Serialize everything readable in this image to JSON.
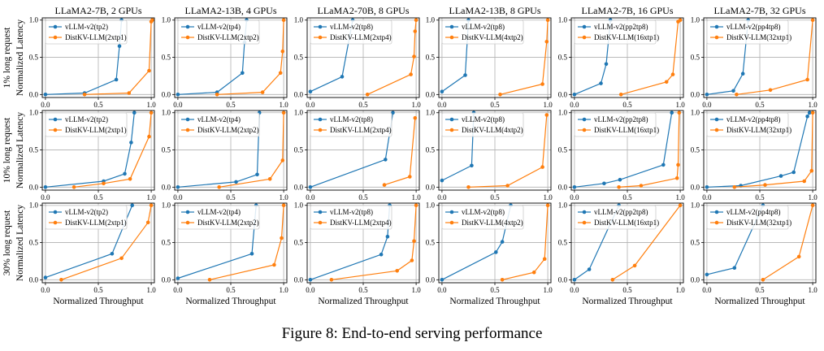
{
  "figure": {
    "caption": "Figure 8: End-to-end serving performance",
    "row_labels": [
      "1% long request",
      "10% long request",
      "30% long request"
    ],
    "ylabel": "Normalized Latency",
    "xlabel": "Normalized Throughput",
    "tick_labels": [
      "0.0",
      "0.5",
      "1.0"
    ],
    "colors": {
      "vllm": "#1f77b4",
      "distkv": "#ff7f0e"
    }
  },
  "chart_data": [
    {
      "type": "line",
      "title": "LLaMA2-7B, 2 GPUs",
      "xlim": [
        -0.03,
        1.03
      ],
      "ylim": [
        -0.04,
        1.03
      ],
      "legend": "top-left",
      "series": [
        {
          "name": "vLLM-v2(tp2)",
          "x": [
            0.0,
            0.37,
            0.67,
            0.7,
            0.72
          ],
          "y": [
            0.0,
            0.02,
            0.2,
            0.65,
            1.0
          ]
        },
        {
          "name": "DistKV-LLM(2xtp1)",
          "x": [
            0.37,
            0.79,
            0.98,
            1.0,
            1.01
          ],
          "y": [
            0.0,
            0.02,
            0.32,
            0.98,
            1.0
          ]
        }
      ]
    },
    {
      "type": "line",
      "title": "LLaMA2-13B, 4 GPUs",
      "xlim": [
        -0.03,
        1.03
      ],
      "ylim": [
        -0.04,
        1.03
      ],
      "legend": "top-left",
      "series": [
        {
          "name": "vLLM-v2(tp4)",
          "x": [
            0.0,
            0.37,
            0.61,
            0.63,
            0.65
          ],
          "y": [
            0.0,
            0.03,
            0.29,
            0.7,
            1.0
          ]
        },
        {
          "name": "DistKV-LLM(2xtp2)",
          "x": [
            0.37,
            0.8,
            0.97,
            0.99,
            1.0
          ],
          "y": [
            0.0,
            0.03,
            0.29,
            0.58,
            1.0
          ]
        }
      ]
    },
    {
      "type": "line",
      "title": "LLaMA2-70B, 8 GPUs",
      "xlim": [
        -0.03,
        1.03
      ],
      "ylim": [
        -0.04,
        1.03
      ],
      "legend": "top-left",
      "series": [
        {
          "name": "vLLM-v2(tp8)",
          "x": [
            0.0,
            0.3,
            0.4
          ],
          "y": [
            0.04,
            0.24,
            1.0
          ]
        },
        {
          "name": "DistKV-LLM(2xtp4)",
          "x": [
            0.54,
            0.95,
            0.98,
            0.99,
            1.0
          ],
          "y": [
            0.0,
            0.27,
            0.51,
            0.85,
            1.0
          ]
        }
      ]
    },
    {
      "type": "line",
      "title": "LLaMA2-13B, 8 GPUs",
      "xlim": [
        -0.03,
        1.03
      ],
      "ylim": [
        -0.04,
        1.03
      ],
      "legend": "top-left",
      "series": [
        {
          "name": "vLLM-v2(tp8)",
          "x": [
            0.0,
            0.22,
            0.25
          ],
          "y": [
            0.04,
            0.26,
            1.0
          ]
        },
        {
          "name": "DistKV-LLM(4xtp2)",
          "x": [
            0.55,
            0.95,
            0.99,
            1.0
          ],
          "y": [
            0.0,
            0.14,
            0.71,
            1.0
          ]
        }
      ]
    },
    {
      "type": "line",
      "title": "LLaMA2-7B, 16 GPUs",
      "xlim": [
        -0.03,
        1.03
      ],
      "ylim": [
        -0.04,
        1.03
      ],
      "legend": "top-left",
      "series": [
        {
          "name": "vLLM-v2(pp2tp8)",
          "x": [
            0.0,
            0.25,
            0.3,
            0.34
          ],
          "y": [
            0.0,
            0.15,
            0.41,
            1.0
          ]
        },
        {
          "name": "DistKV-LLM(16xtp1)",
          "x": [
            0.44,
            0.87,
            0.93,
            0.98,
            1.0
          ],
          "y": [
            0.0,
            0.17,
            0.27,
            0.98,
            1.0
          ]
        }
      ]
    },
    {
      "type": "line",
      "title": "LLaMA2-7B, 32 GPUs",
      "xlim": [
        -0.03,
        1.03
      ],
      "ylim": [
        -0.04,
        1.03
      ],
      "legend": "top-left",
      "series": [
        {
          "name": "vLLM-v2(pp4tp8)",
          "x": [
            0.0,
            0.25,
            0.34,
            0.39
          ],
          "y": [
            0.0,
            0.05,
            0.28,
            1.0
          ]
        },
        {
          "name": "DistKV-LLM(32xtp1)",
          "x": [
            0.28,
            0.6,
            0.95,
            1.0
          ],
          "y": [
            0.0,
            0.06,
            0.2,
            1.0
          ]
        }
      ]
    },
    {
      "type": "line",
      "title": "",
      "xlim": [
        -0.03,
        1.03
      ],
      "ylim": [
        -0.04,
        1.03
      ],
      "legend": "top-left",
      "series": [
        {
          "name": "vLLM-v2(tp2)",
          "x": [
            0.0,
            0.55,
            0.75,
            0.81,
            0.84
          ],
          "y": [
            0.0,
            0.08,
            0.18,
            0.6,
            1.0
          ]
        },
        {
          "name": "DistKV-LLM(2xtp1)",
          "x": [
            0.27,
            0.55,
            0.8,
            0.98,
            1.0
          ],
          "y": [
            0.0,
            0.05,
            0.11,
            0.68,
            1.0
          ]
        }
      ]
    },
    {
      "type": "line",
      "title": "",
      "xlim": [
        -0.03,
        1.03
      ],
      "ylim": [
        -0.04,
        1.03
      ],
      "legend": "top-left",
      "series": [
        {
          "name": "vLLM-v2(tp4)",
          "x": [
            0.0,
            0.55,
            0.75,
            0.77
          ],
          "y": [
            0.0,
            0.07,
            0.17,
            1.0
          ]
        },
        {
          "name": "DistKV-LLM(2xtp2)",
          "x": [
            0.39,
            0.87,
            0.99,
            1.0
          ],
          "y": [
            0.0,
            0.11,
            0.36,
            1.0
          ]
        }
      ]
    },
    {
      "type": "line",
      "title": "",
      "xlim": [
        -0.03,
        1.03
      ],
      "ylim": [
        -0.04,
        1.03
      ],
      "legend": "top-left",
      "series": [
        {
          "name": "vLLM-v2(tp8)",
          "x": [
            0.0,
            0.71,
            0.78
          ],
          "y": [
            0.0,
            0.37,
            1.0
          ]
        },
        {
          "name": "DistKV-LLM(2xtp4)",
          "x": [
            0.7,
            0.94,
            0.99
          ],
          "y": [
            0.03,
            0.14,
            0.93
          ]
        }
      ]
    },
    {
      "type": "line",
      "title": "",
      "xlim": [
        -0.03,
        1.03
      ],
      "ylim": [
        -0.04,
        1.03
      ],
      "legend": "top-left",
      "series": [
        {
          "name": "vLLM-v2(tp8)",
          "x": [
            0.0,
            0.28,
            0.3
          ],
          "y": [
            0.09,
            0.29,
            1.0
          ]
        },
        {
          "name": "DistKV-LLM(4xtp2)",
          "x": [
            0.25,
            0.62,
            0.95,
            0.99
          ],
          "y": [
            0.0,
            0.02,
            0.27,
            0.97
          ]
        }
      ]
    },
    {
      "type": "line",
      "title": "",
      "xlim": [
        -0.03,
        1.03
      ],
      "ylim": [
        -0.04,
        1.03
      ],
      "legend": "top-left",
      "series": [
        {
          "name": "vLLM-v2(pp2tp8)",
          "x": [
            0.0,
            0.28,
            0.43,
            0.84,
            0.92
          ],
          "y": [
            0.0,
            0.05,
            0.1,
            0.3,
            1.0
          ]
        },
        {
          "name": "DistKV-LLM(16xtp1)",
          "x": [
            0.42,
            0.63,
            0.97,
            0.98,
            0.99
          ],
          "y": [
            0.0,
            0.02,
            0.12,
            0.3,
            1.0
          ]
        }
      ]
    },
    {
      "type": "line",
      "title": "",
      "xlim": [
        -0.03,
        1.03
      ],
      "ylim": [
        -0.04,
        1.03
      ],
      "legend": "top-left",
      "series": [
        {
          "name": "vLLM-v2(pp4tp8)",
          "x": [
            0.0,
            0.32,
            0.7,
            0.82,
            0.95,
            0.97
          ],
          "y": [
            0.0,
            0.02,
            0.15,
            0.2,
            0.95,
            1.0
          ]
        },
        {
          "name": "DistKV-LLM(32xtp1)",
          "x": [
            0.26,
            0.55,
            0.92,
            0.99,
            1.0
          ],
          "y": [
            0.0,
            0.03,
            0.08,
            0.22,
            1.0
          ]
        }
      ]
    },
    {
      "type": "line",
      "title": "",
      "xlim": [
        -0.03,
        1.03
      ],
      "ylim": [
        -0.04,
        1.03
      ],
      "legend": "top-left",
      "series": [
        {
          "name": "vLLM-v2(tp2)",
          "x": [
            0.0,
            0.63,
            0.82
          ],
          "y": [
            0.03,
            0.35,
            1.0
          ]
        },
        {
          "name": "DistKV-LLM(2xtp1)",
          "x": [
            0.15,
            0.72,
            0.97,
            1.0
          ],
          "y": [
            0.0,
            0.29,
            0.77,
            1.0
          ]
        }
      ]
    },
    {
      "type": "line",
      "title": "",
      "xlim": [
        -0.03,
        1.03
      ],
      "ylim": [
        -0.04,
        1.03
      ],
      "legend": "top-left",
      "series": [
        {
          "name": "vLLM-v2(tp4)",
          "x": [
            0.0,
            0.7,
            0.74
          ],
          "y": [
            0.02,
            0.35,
            1.0
          ]
        },
        {
          "name": "DistKV-LLM(2xtp2)",
          "x": [
            0.3,
            0.91,
            0.98,
            1.0
          ],
          "y": [
            0.0,
            0.2,
            0.56,
            1.0
          ]
        }
      ]
    },
    {
      "type": "line",
      "title": "",
      "xlim": [
        -0.03,
        1.03
      ],
      "ylim": [
        -0.04,
        1.03
      ],
      "legend": "top-left",
      "series": [
        {
          "name": "vLLM-v2(tp8)",
          "x": [
            0.0,
            0.67,
            0.73,
            0.75
          ],
          "y": [
            0.0,
            0.34,
            0.58,
            1.0
          ]
        },
        {
          "name": "DistKV-LLM(2xtp4)",
          "x": [
            0.2,
            0.82,
            0.96,
            0.98,
            1.0
          ],
          "y": [
            0.0,
            0.12,
            0.26,
            0.52,
            1.0
          ]
        }
      ]
    },
    {
      "type": "line",
      "title": "",
      "xlim": [
        -0.03,
        1.03
      ],
      "ylim": [
        -0.04,
        1.03
      ],
      "legend": "top-left",
      "series": [
        {
          "name": "vLLM-v2(tp8)",
          "x": [
            0.0,
            0.51,
            0.57,
            0.65
          ],
          "y": [
            0.0,
            0.37,
            0.51,
            1.0
          ]
        },
        {
          "name": "DistKV-LLM(4xtp2)",
          "x": [
            0.57,
            0.87,
            0.97,
            1.0
          ],
          "y": [
            0.0,
            0.1,
            0.28,
            1.0
          ]
        }
      ]
    },
    {
      "type": "line",
      "title": "",
      "xlim": [
        -0.03,
        1.03
      ],
      "ylim": [
        -0.04,
        1.03
      ],
      "legend": "top-left",
      "series": [
        {
          "name": "vLLM-v2(pp2tp8)",
          "x": [
            0.0,
            0.14,
            0.42
          ],
          "y": [
            0.0,
            0.14,
            1.0
          ]
        },
        {
          "name": "DistKV-LLM(16xtp1)",
          "x": [
            0.36,
            0.57,
            1.0
          ],
          "y": [
            0.0,
            0.19,
            1.0
          ]
        }
      ]
    },
    {
      "type": "line",
      "title": "",
      "xlim": [
        -0.03,
        1.03
      ],
      "ylim": [
        -0.04,
        1.03
      ],
      "legend": "top-left",
      "series": [
        {
          "name": "vLLM-v2(pp4tp8)",
          "x": [
            0.0,
            0.26,
            0.53
          ],
          "y": [
            0.07,
            0.16,
            1.0
          ]
        },
        {
          "name": "DistKV-LLM(32xtp1)",
          "x": [
            0.53,
            0.87,
            1.0
          ],
          "y": [
            0.0,
            0.31,
            1.0
          ]
        }
      ]
    }
  ]
}
